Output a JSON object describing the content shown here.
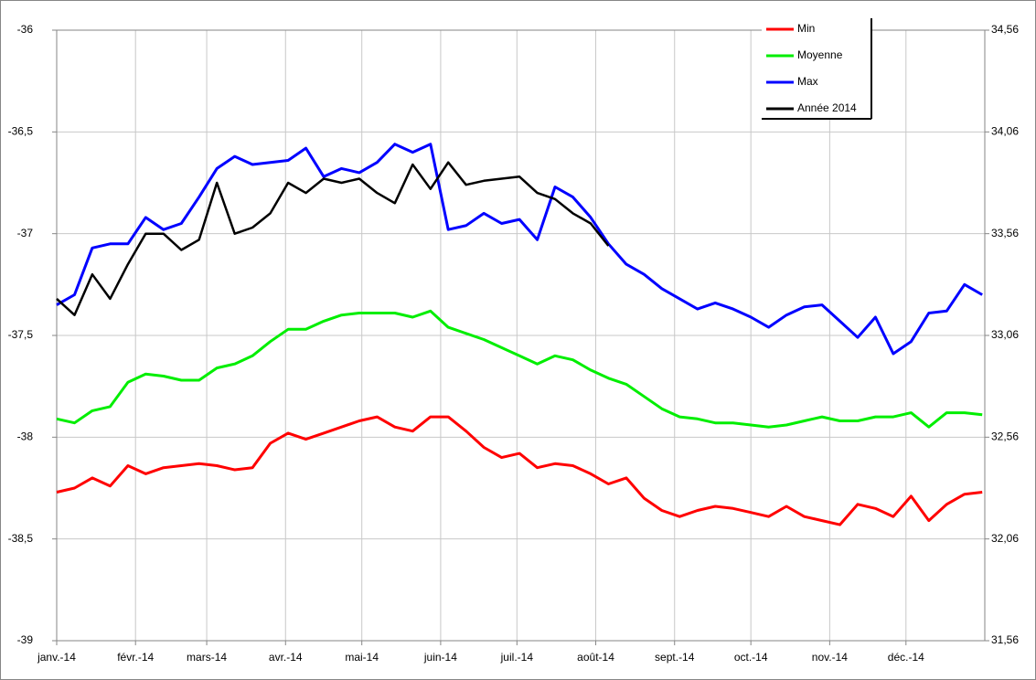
{
  "chart_data": {
    "type": "line",
    "x": [
      0,
      7,
      14,
      21,
      28,
      35,
      42,
      49,
      56,
      63,
      70,
      77,
      84,
      91,
      98,
      105,
      112,
      119,
      126,
      133,
      140,
      147,
      154,
      161,
      168,
      175,
      182,
      189,
      196,
      203,
      210,
      217,
      224,
      231,
      238,
      245,
      252,
      259,
      266,
      273,
      280,
      287,
      294,
      301,
      308,
      315,
      322,
      329,
      336,
      343,
      350,
      357,
      364
    ],
    "xlim": [
      0,
      365
    ],
    "xticks": [
      {
        "value": 0,
        "label": "janv.-14"
      },
      {
        "value": 31,
        "label": "févr.-14"
      },
      {
        "value": 59,
        "label": "mars-14"
      },
      {
        "value": 90,
        "label": "avr.-14"
      },
      {
        "value": 120,
        "label": "mai-14"
      },
      {
        "value": 151,
        "label": "juin-14"
      },
      {
        "value": 181,
        "label": "juil.-14"
      },
      {
        "value": 212,
        "label": "août-14"
      },
      {
        "value": 243,
        "label": "sept.-14"
      },
      {
        "value": 273,
        "label": "oct.-14"
      },
      {
        "value": 304,
        "label": "nov.-14"
      },
      {
        "value": 334,
        "label": "déc.-14"
      }
    ],
    "ylim": [
      -39,
      -36
    ],
    "yticks": [
      {
        "value": -39,
        "label": "-39"
      },
      {
        "value": -38.5,
        "label": "-38,5"
      },
      {
        "value": -38,
        "label": "-38"
      },
      {
        "value": -37.5,
        "label": "-37,5"
      },
      {
        "value": -37,
        "label": "-37"
      },
      {
        "value": -36.5,
        "label": "-36,5"
      },
      {
        "value": -36,
        "label": "-36"
      }
    ],
    "y2lim": [
      31.56,
      34.56
    ],
    "y2ticks": [
      {
        "value": 31.56,
        "label": "31,56"
      },
      {
        "value": 32.06,
        "label": "32,06"
      },
      {
        "value": 32.56,
        "label": "32,56"
      },
      {
        "value": 33.06,
        "label": "33,06"
      },
      {
        "value": 33.56,
        "label": "33,56"
      },
      {
        "value": 34.06,
        "label": "34,06"
      },
      {
        "value": 34.56,
        "label": "34,56"
      }
    ],
    "grid": true,
    "series": [
      {
        "name": "Min",
        "color": "#ff0000",
        "values": [
          -38.27,
          -38.25,
          -38.2,
          -38.24,
          -38.14,
          -38.18,
          -38.15,
          -38.14,
          -38.13,
          -38.14,
          -38.16,
          -38.15,
          -38.03,
          -37.98,
          -38.01,
          -37.98,
          -37.95,
          -37.92,
          -37.9,
          -37.95,
          -37.97,
          -37.9,
          -37.9,
          -37.97,
          -38.05,
          -38.1,
          -38.08,
          -38.15,
          -38.13,
          -38.14,
          -38.18,
          -38.23,
          -38.2,
          -38.3,
          -38.36,
          -38.39,
          -38.36,
          -38.34,
          -38.35,
          -38.37,
          -38.39,
          -38.34,
          -38.39,
          -38.41,
          -38.43,
          -38.33,
          -38.35,
          -38.39,
          -38.29,
          -38.41,
          -38.33,
          -38.28,
          -38.27
        ]
      },
      {
        "name": "Moyenne",
        "color": "#00ee00",
        "values": [
          -37.91,
          -37.93,
          -37.87,
          -37.85,
          -37.73,
          -37.69,
          -37.7,
          -37.72,
          -37.72,
          -37.66,
          -37.64,
          -37.6,
          -37.53,
          -37.47,
          -37.47,
          -37.43,
          -37.4,
          -37.39,
          -37.39,
          -37.39,
          -37.41,
          -37.38,
          -37.46,
          -37.49,
          -37.52,
          -37.56,
          -37.6,
          -37.64,
          -37.6,
          -37.62,
          -37.67,
          -37.71,
          -37.74,
          -37.8,
          -37.86,
          -37.9,
          -37.91,
          -37.93,
          -37.93,
          -37.94,
          -37.95,
          -37.94,
          -37.92,
          -37.9,
          -37.92,
          -37.92,
          -37.9,
          -37.9,
          -37.88,
          -37.95,
          -37.88,
          -37.88,
          -37.89
        ]
      },
      {
        "name": "Max",
        "color": "#0000ff",
        "values": [
          -37.35,
          -37.3,
          -37.07,
          -37.05,
          -37.05,
          -36.92,
          -36.98,
          -36.95,
          -36.82,
          -36.68,
          -36.62,
          -36.66,
          -36.65,
          -36.64,
          -36.58,
          -36.72,
          -36.68,
          -36.7,
          -36.65,
          -36.56,
          -36.6,
          -36.56,
          -36.98,
          -36.96,
          -36.9,
          -36.95,
          -36.93,
          -37.03,
          -36.77,
          -36.82,
          -36.92,
          -37.05,
          -37.15,
          -37.2,
          -37.27,
          -37.32,
          -37.37,
          -37.34,
          -37.37,
          -37.41,
          -37.46,
          -37.4,
          -37.36,
          -37.35,
          -37.43,
          -37.51,
          -37.41,
          -37.59,
          -37.53,
          -37.39,
          -37.38,
          -37.25,
          -37.3
        ]
      },
      {
        "name": "Année 2014",
        "color": "#000000",
        "values": [
          -37.32,
          -37.4,
          -37.2,
          -37.32,
          -37.15,
          -37.0,
          -37.0,
          -37.08,
          -37.03,
          -36.75,
          -37.0,
          -36.97,
          -36.9,
          -36.75,
          -36.8,
          -36.73,
          -36.75,
          -36.73,
          -36.8,
          -36.85,
          -36.66,
          -36.78,
          -36.65,
          -36.76,
          -36.74,
          -36.73,
          -36.72,
          -36.8,
          -36.83,
          -36.9,
          -36.95,
          -37.06,
          null,
          null,
          null,
          null,
          null,
          null,
          null,
          null,
          null,
          null,
          null,
          null,
          null,
          null,
          null,
          null,
          null,
          null,
          null,
          null,
          null
        ]
      }
    ]
  }
}
